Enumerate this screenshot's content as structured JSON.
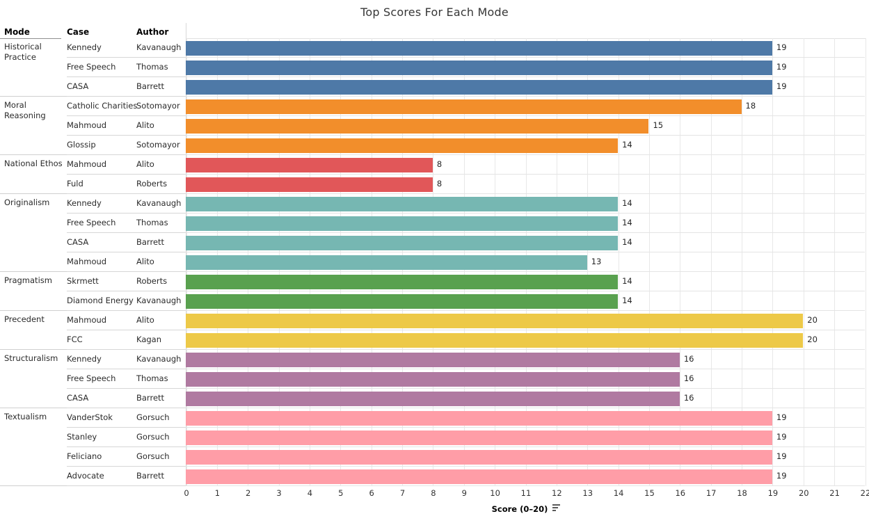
{
  "title": "Top Scores For Each Mode",
  "columns": {
    "mode": "Mode",
    "case": "Case",
    "author": "Author"
  },
  "axis": {
    "label": "Score (0–20)"
  },
  "chart_data": {
    "type": "bar",
    "orientation": "horizontal",
    "title": "Top Scores For Each Mode",
    "xlabel": "Score (0–20)",
    "xlim": [
      0,
      22
    ],
    "x_ticks": [
      0,
      1,
      2,
      3,
      4,
      5,
      6,
      7,
      8,
      9,
      10,
      11,
      12,
      13,
      14,
      15,
      16,
      17,
      18,
      19,
      20,
      21,
      22
    ],
    "grid": true,
    "row_fields": [
      "Mode",
      "Case",
      "Author"
    ],
    "groups": [
      {
        "mode": "Historical Practice",
        "color": "#4e79a7",
        "rows": [
          {
            "case": "Kennedy",
            "author": "Kavanaugh",
            "score": 19
          },
          {
            "case": "Free Speech",
            "author": "Thomas",
            "score": 19
          },
          {
            "case": "CASA",
            "author": "Barrett",
            "score": 19
          }
        ]
      },
      {
        "mode": "Moral Reasoning",
        "color": "#f28e2b",
        "rows": [
          {
            "case": "Catholic Charities",
            "author": "Sotomayor",
            "score": 18
          },
          {
            "case": "Mahmoud",
            "author": "Alito",
            "score": 15
          },
          {
            "case": "Glossip",
            "author": "Sotomayor",
            "score": 14
          }
        ]
      },
      {
        "mode": "National Ethos",
        "color": "#e15759",
        "rows": [
          {
            "case": "Mahmoud",
            "author": "Alito",
            "score": 8
          },
          {
            "case": "Fuld",
            "author": "Roberts",
            "score": 8
          }
        ]
      },
      {
        "mode": "Originalism",
        "color": "#76b7b2",
        "rows": [
          {
            "case": "Kennedy",
            "author": "Kavanaugh",
            "score": 14
          },
          {
            "case": "Free Speech",
            "author": "Thomas",
            "score": 14
          },
          {
            "case": "CASA",
            "author": "Barrett",
            "score": 14
          },
          {
            "case": "Mahmoud",
            "author": "Alito",
            "score": 13
          }
        ]
      },
      {
        "mode": "Pragmatism",
        "color": "#59a14f",
        "rows": [
          {
            "case": "Skrmett",
            "author": "Roberts",
            "score": 14
          },
          {
            "case": "Diamond Energy",
            "author": "Kavanaugh",
            "score": 14
          }
        ]
      },
      {
        "mode": "Precedent",
        "color": "#edc948",
        "rows": [
          {
            "case": "Mahmoud",
            "author": "Alito",
            "score": 20
          },
          {
            "case": "FCC",
            "author": "Kagan",
            "score": 20
          }
        ]
      },
      {
        "mode": "Structuralism",
        "color": "#b07aa1",
        "rows": [
          {
            "case": "Kennedy",
            "author": "Kavanaugh",
            "score": 16
          },
          {
            "case": "Free Speech",
            "author": "Thomas",
            "score": 16
          },
          {
            "case": "CASA",
            "author": "Barrett",
            "score": 16
          }
        ]
      },
      {
        "mode": "Textualism",
        "color": "#ff9da7",
        "rows": [
          {
            "case": "VanderStok",
            "author": "Gorsuch",
            "score": 19
          },
          {
            "case": "Stanley",
            "author": "Gorsuch",
            "score": 19
          },
          {
            "case": "Feliciano",
            "author": "Gorsuch",
            "score": 19
          },
          {
            "case": "Advocate",
            "author": "Barrett",
            "score": 19
          }
        ]
      }
    ]
  }
}
